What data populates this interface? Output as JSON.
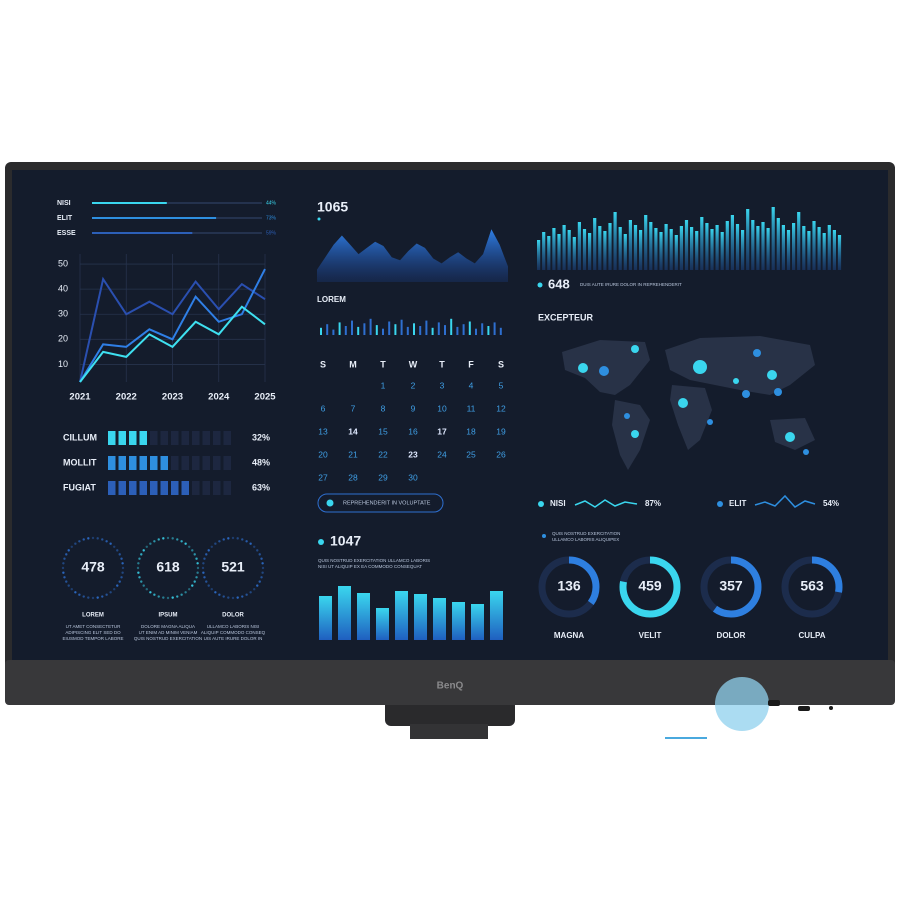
{
  "brand": "BenQ",
  "top_bars": {
    "xlim": [
      0,
      100
    ],
    "items": [
      {
        "label": "NISI",
        "value": 44,
        "value_label": "44%",
        "color": "#3ad6ee"
      },
      {
        "label": "ELIT",
        "value": 73,
        "value_label": "73%",
        "color": "#2e8fe0"
      },
      {
        "label": "ESSE",
        "value": 59,
        "value_label": "59%",
        "color": "#2c5fb8"
      }
    ]
  },
  "line_chart": {
    "type": "line",
    "x": [
      2021,
      2021.5,
      2022,
      2022.5,
      2023,
      2023.5,
      2024,
      2024.5,
      2025
    ],
    "xlim": [
      2021,
      2025
    ],
    "xticks": [
      2021,
      2022,
      2023,
      2024,
      2025
    ],
    "ylim": [
      3,
      54
    ],
    "yticks": [
      10,
      20,
      30,
      40,
      50
    ],
    "grid": true,
    "series": [
      {
        "color": "#2a4fb0",
        "values": [
          3,
          44,
          30,
          35,
          30,
          43,
          32,
          42,
          36
        ]
      },
      {
        "color": "#2f7fe6",
        "values": [
          3,
          18,
          17,
          24,
          20,
          37,
          27,
          30,
          48
        ]
      },
      {
        "color": "#3ee0f0",
        "values": [
          3,
          15,
          13,
          22,
          17,
          27,
          22,
          33,
          26
        ]
      }
    ]
  },
  "segments": {
    "xlim": [
      0,
      100
    ],
    "items": [
      {
        "label": "CILLUM",
        "value": 32,
        "value_label": "32%",
        "color": "#3ad6ee"
      },
      {
        "label": "MOLLIT",
        "value": 48,
        "value_label": "48%",
        "color": "#2e8fe0"
      },
      {
        "label": "FUGIAT",
        "value": 63,
        "value_label": "63%",
        "color": "#2c5fb8"
      }
    ]
  },
  "gauges": [
    {
      "value": 478,
      "label": "LOREM",
      "text": [
        "UT AMET CONSECTETUR",
        "ADIPISCING ELIT SED DO",
        "EIUSMOD TEMPOR LABORE"
      ]
    },
    {
      "value": 618,
      "label": "IPSUM",
      "text": [
        "DOLORE MAGNA ALIQUA",
        "UT ENIM AD MINIM VENIAM",
        "QUIS NOSTRUD EXERCITATION"
      ]
    },
    {
      "value": 521,
      "label": "DOLOR",
      "text": [
        "ULLAMCO LABORIS NISI",
        "ALIQUIP COMMODO CONSEQ",
        "UIS AUTE IRURE DOLOR IN"
      ]
    }
  ],
  "area_chart": {
    "title": 1065,
    "ylim": [
      0,
      100
    ],
    "values": [
      20,
      40,
      60,
      75,
      60,
      45,
      55,
      65,
      58,
      40,
      35,
      50,
      62,
      55,
      38,
      30,
      40,
      48,
      38,
      30,
      45,
      85,
      60,
      25
    ]
  },
  "mini_bars": {
    "title": "LOREM",
    "ylim": [
      0,
      20
    ],
    "values": [
      8,
      12,
      6,
      14,
      10,
      16,
      9,
      13,
      18,
      11,
      7,
      15,
      12,
      17,
      9,
      13,
      10,
      16,
      8,
      14,
      11,
      18,
      9,
      12,
      15,
      7,
      13,
      10,
      14,
      8
    ]
  },
  "calendar": {
    "weekdays": [
      "S",
      "M",
      "T",
      "W",
      "T",
      "F",
      "S"
    ],
    "weeks": [
      [
        null,
        null,
        1,
        2,
        3,
        4,
        5
      ],
      [
        6,
        7,
        8,
        9,
        10,
        11,
        12
      ],
      [
        13,
        14,
        15,
        16,
        17,
        18,
        19
      ],
      [
        20,
        21,
        22,
        23,
        24,
        25,
        26
      ],
      [
        27,
        28,
        29,
        30,
        null,
        null,
        null
      ]
    ],
    "highlighted": [
      14,
      17,
      23
    ]
  },
  "button": "REPREHENDERIT IN VOLUPTATE",
  "bar_panel": {
    "title": 1047,
    "text": [
      "QUIS NOSTRUD EXERCITATION ULLAMCO LABORIS",
      "NISI UT ALIQUIP EX EA COMMODO CONSEQUAT"
    ],
    "ylim": [
      0,
      60
    ],
    "values": [
      44,
      54,
      47,
      32,
      49,
      46,
      42,
      38,
      36,
      49
    ]
  },
  "wave_panel": {
    "title": 648,
    "text": "DUIS AUTE IRURE DOLOR IN REPREHENDERIT",
    "ylim": [
      0,
      70
    ],
    "values": [
      30,
      38,
      34,
      42,
      36,
      45,
      40,
      33,
      48,
      41,
      37,
      52,
      44,
      39,
      47,
      58,
      43,
      36,
      50,
      45,
      40,
      55,
      48,
      42,
      38,
      46,
      41,
      35,
      44,
      50,
      43,
      39,
      53,
      47,
      41,
      45,
      38,
      49,
      55,
      46,
      40,
      61,
      50,
      44,
      48,
      42,
      63,
      52,
      45,
      40,
      47,
      58,
      44,
      39,
      49,
      43,
      37,
      45,
      40,
      35
    ]
  },
  "map": {
    "title": "EXCEPTEUR"
  },
  "stats": [
    {
      "label": "NISI",
      "value": 87,
      "value_label": "87%"
    },
    {
      "label": "ELIT",
      "value": 54,
      "value_label": "54%"
    }
  ],
  "note": [
    "QUIS NOSTRUD EXERCITATION",
    "ULLAMCO LABORIS ALIQUIPEX"
  ],
  "rings": [
    {
      "value": 136,
      "label": "MAGNA",
      "progress": 35
    },
    {
      "value": 459,
      "label": "VELIT",
      "progress": 78
    },
    {
      "value": 357,
      "label": "DOLOR",
      "progress": 60
    },
    {
      "value": 563,
      "label": "CULPA",
      "progress": 28
    }
  ]
}
